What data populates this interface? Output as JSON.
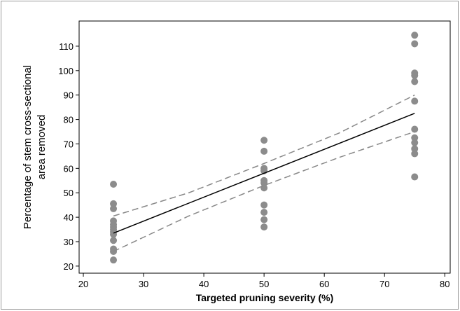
{
  "chart_data": {
    "type": "scatter",
    "xlabel": "Targeted pruning severity (%)",
    "ylabel": [
      "Percentage of stem cross-sectional",
      "area removed"
    ],
    "xlim": [
      19.3,
      80.9
    ],
    "ylim": [
      17.1,
      120.3
    ],
    "xticks": [
      20,
      30,
      40,
      50,
      60,
      70,
      80
    ],
    "yticks": [
      20,
      30,
      40,
      50,
      60,
      70,
      80,
      90,
      100,
      110
    ],
    "series": [
      {
        "type": "scatter",
        "color": "#8c8c8c",
        "x": [
          25,
          25,
          25,
          25,
          25,
          25,
          25,
          25,
          25,
          25,
          25,
          25,
          25,
          50,
          50,
          50,
          50,
          50,
          50,
          50,
          50,
          50,
          50,
          50,
          75,
          75,
          75,
          75,
          75,
          75,
          75,
          75,
          75,
          75,
          75,
          75
        ],
        "values": [
          53.5,
          45.5,
          43.5,
          38.5,
          37,
          36,
          35,
          34,
          33,
          30.5,
          27,
          26,
          22.5,
          71.5,
          67,
          60,
          59,
          55,
          54,
          52,
          45,
          42,
          39,
          36,
          114.5,
          111,
          99,
          98,
          95.5,
          87.5,
          76,
          72.5,
          70.5,
          68,
          66,
          56.5
        ]
      },
      {
        "type": "line",
        "color": "#000000",
        "style": "solid",
        "x": [
          25,
          50,
          75
        ],
        "values": [
          33.5,
          58,
          82.5
        ]
      },
      {
        "type": "line",
        "color": "#888888",
        "style": "dashed",
        "x": [
          25,
          37.5,
          50,
          62.5,
          75
        ],
        "values": [
          40.5,
          50,
          62,
          74.5,
          90
        ]
      },
      {
        "type": "line",
        "color": "#888888",
        "style": "dashed",
        "x": [
          25,
          37.5,
          50,
          62.5,
          75
        ],
        "values": [
          26,
          40.5,
          53,
          64.5,
          75
        ]
      }
    ]
  }
}
